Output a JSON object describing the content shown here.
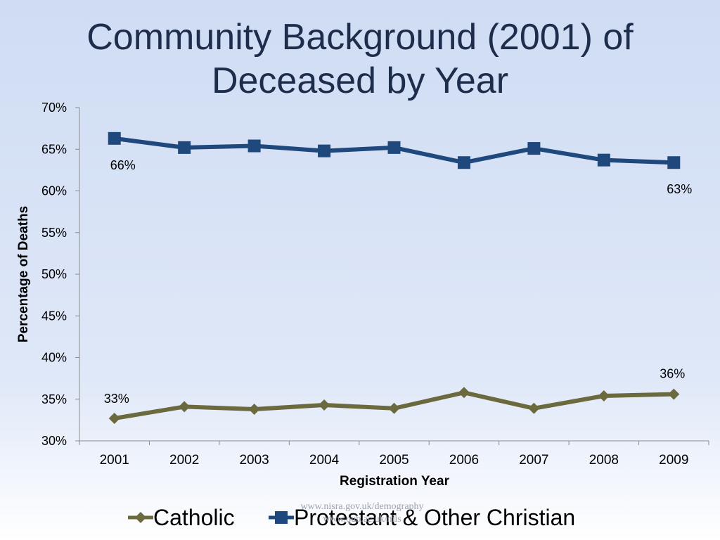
{
  "slide": {
    "title_line1": "Community Background (2001) of",
    "title_line2": "Deceased by Year",
    "watermark_line1": "www.nisra.gov.uk/demography",
    "watermark_line2": "www.qub.ac.uk/nils"
  },
  "chart_data": {
    "type": "line",
    "title": "Community Background (2001) of Deceased by Year",
    "xlabel": "Registration Year",
    "ylabel": "Percentage of Deaths",
    "ylim": [
      30,
      70
    ],
    "y_ticks": [
      "30%",
      "35%",
      "40%",
      "45%",
      "50%",
      "55%",
      "60%",
      "65%",
      "70%"
    ],
    "y_tick_values": [
      30,
      35,
      40,
      45,
      50,
      55,
      60,
      65,
      70
    ],
    "categories": [
      "2001",
      "2002",
      "2003",
      "2004",
      "2005",
      "2006",
      "2007",
      "2008",
      "2009"
    ],
    "grid": false,
    "legend_position": "bottom",
    "series": [
      {
        "name": "Catholic",
        "color": "#6b6a3e",
        "marker": "diamond",
        "values": [
          32.7,
          34.1,
          33.8,
          34.3,
          33.9,
          35.8,
          33.9,
          35.4,
          35.6
        ],
        "labels": [
          {
            "index": 0,
            "text": "33%"
          },
          {
            "index": 8,
            "text": "36%"
          }
        ]
      },
      {
        "name": "Protestant & Other Christian",
        "color": "#1f497d",
        "marker": "square",
        "values": [
          66.3,
          65.2,
          65.4,
          64.8,
          65.2,
          63.4,
          65.1,
          63.7,
          63.4
        ],
        "labels": [
          {
            "index": 0,
            "text": "66%"
          },
          {
            "index": 8,
            "text": "63%"
          }
        ]
      }
    ]
  }
}
